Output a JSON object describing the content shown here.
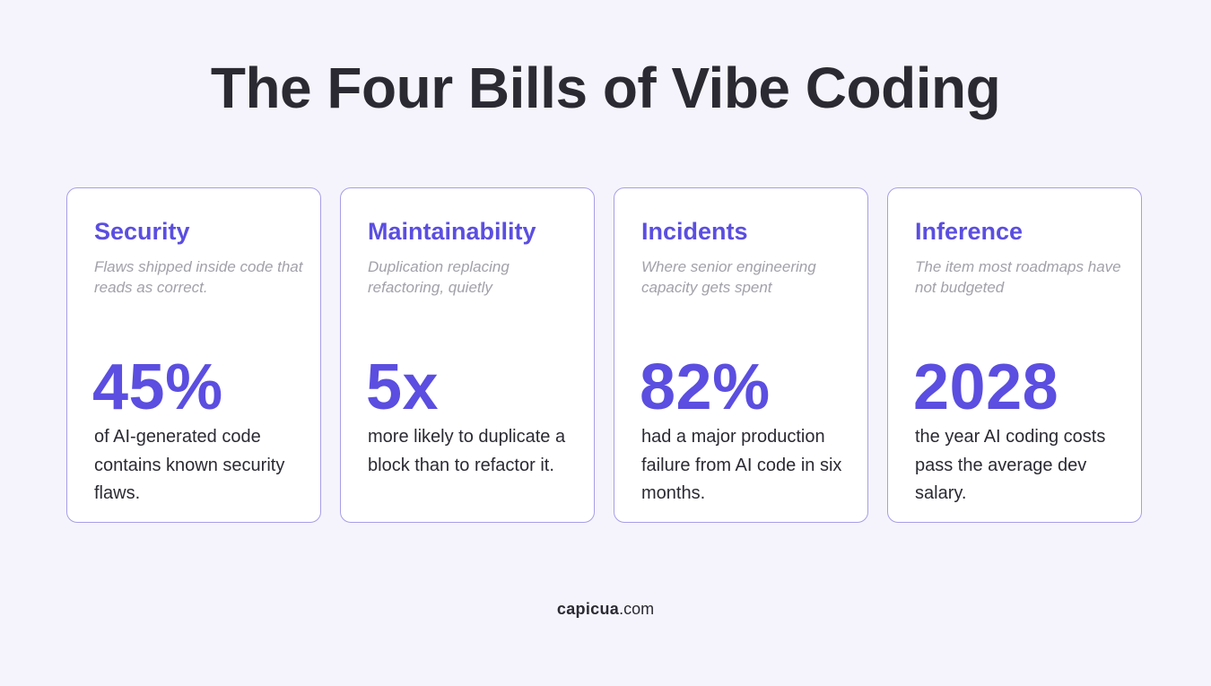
{
  "title": "The Four Bills of Vibe Coding",
  "cards": [
    {
      "title": "Security",
      "subtitle": "Flaws shipped inside code that reads as correct.",
      "stat": "45%",
      "description": "of AI-generated code contains known security flaws."
    },
    {
      "title": "Maintainability",
      "subtitle": "Duplication replacing refactoring, quietly",
      "stat": "5x",
      "description": "more likely to duplicate a block than to refactor it."
    },
    {
      "title": "Incidents",
      "subtitle": "Where senior engineering capacity gets spent",
      "stat": "82%",
      "description": "had a major production failure from AI code in six months."
    },
    {
      "title": "Inference",
      "subtitle": "The item most roadmaps have not budgeted",
      "stat": "2028",
      "description": "the year AI coding costs pass the average dev salary."
    }
  ],
  "footer": {
    "brand": "capicua",
    "domain": ".com"
  },
  "colors": {
    "accent": "#5b4ee0",
    "background": "#f5f4fc",
    "text": "#2b2a33",
    "muted": "#a2a1aa",
    "card_border": "#a59ee8"
  }
}
